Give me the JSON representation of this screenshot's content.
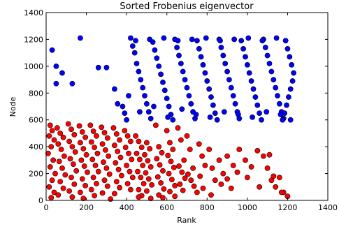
{
  "chart_data": {
    "type": "scatter",
    "title": "Sorted Frobenius eigenvector",
    "xlabel": "Rank",
    "ylabel": "Node",
    "xlim": [
      0,
      1400
    ],
    "ylim": [
      0,
      1400
    ],
    "xticks": [
      0,
      200,
      400,
      600,
      800,
      1000,
      1200,
      1400
    ],
    "yticks": [
      0,
      200,
      400,
      600,
      800,
      1000,
      1200,
      1400
    ],
    "grid": false,
    "legend": "none",
    "series": [
      {
        "color": "#ff0000",
        "approx_count": 600,
        "points": [
          [
            20,
            560
          ],
          [
            30,
            520
          ],
          [
            15,
            480
          ],
          [
            40,
            450
          ],
          [
            25,
            400
          ],
          [
            10,
            350
          ],
          [
            35,
            300
          ],
          [
            20,
            250
          ],
          [
            45,
            200
          ],
          [
            30,
            150
          ],
          [
            15,
            100
          ],
          [
            40,
            60
          ],
          [
            25,
            20
          ],
          [
            55,
            540
          ],
          [
            70,
            500
          ],
          [
            85,
            470
          ],
          [
            60,
            420
          ],
          [
            75,
            380
          ],
          [
            90,
            330
          ],
          [
            65,
            290
          ],
          [
            80,
            240
          ],
          [
            95,
            190
          ],
          [
            70,
            140
          ],
          [
            85,
            90
          ],
          [
            60,
            40
          ],
          [
            110,
            570
          ],
          [
            125,
            530
          ],
          [
            140,
            490
          ],
          [
            115,
            440
          ],
          [
            130,
            400
          ],
          [
            145,
            360
          ],
          [
            120,
            310
          ],
          [
            135,
            270
          ],
          [
            150,
            220
          ],
          [
            125,
            170
          ],
          [
            140,
            120
          ],
          [
            115,
            70
          ],
          [
            130,
            25
          ],
          [
            165,
            555
          ],
          [
            180,
            510
          ],
          [
            195,
            470
          ],
          [
            170,
            430
          ],
          [
            185,
            385
          ],
          [
            200,
            340
          ],
          [
            175,
            300
          ],
          [
            190,
            255
          ],
          [
            205,
            210
          ],
          [
            180,
            160
          ],
          [
            195,
            110
          ],
          [
            170,
            60
          ],
          [
            185,
            15
          ],
          [
            220,
            560
          ],
          [
            235,
            515
          ],
          [
            250,
            480
          ],
          [
            225,
            435
          ],
          [
            240,
            395
          ],
          [
            255,
            350
          ],
          [
            230,
            305
          ],
          [
            245,
            260
          ],
          [
            260,
            215
          ],
          [
            235,
            170
          ],
          [
            250,
            125
          ],
          [
            225,
            80
          ],
          [
            240,
            35
          ],
          [
            275,
            545
          ],
          [
            290,
            505
          ],
          [
            305,
            465
          ],
          [
            280,
            420
          ],
          [
            295,
            375
          ],
          [
            310,
            330
          ],
          [
            285,
            285
          ],
          [
            300,
            240
          ],
          [
            315,
            195
          ],
          [
            290,
            150
          ],
          [
            305,
            105
          ],
          [
            280,
            55
          ],
          [
            320,
            10
          ],
          [
            335,
            540
          ],
          [
            350,
            495
          ],
          [
            365,
            450
          ],
          [
            340,
            410
          ],
          [
            355,
            365
          ],
          [
            370,
            320
          ],
          [
            345,
            280
          ],
          [
            360,
            230
          ],
          [
            375,
            185
          ],
          [
            350,
            140
          ],
          [
            365,
            95
          ],
          [
            340,
            50
          ],
          [
            390,
            520
          ],
          [
            405,
            480
          ],
          [
            420,
            440
          ],
          [
            395,
            395
          ],
          [
            410,
            350
          ],
          [
            425,
            305
          ],
          [
            400,
            260
          ],
          [
            415,
            215
          ],
          [
            430,
            170
          ],
          [
            405,
            125
          ],
          [
            420,
            80
          ],
          [
            445,
            480
          ],
          [
            460,
            440
          ],
          [
            475,
            395
          ],
          [
            450,
            350
          ],
          [
            465,
            305
          ],
          [
            480,
            260
          ],
          [
            455,
            215
          ],
          [
            470,
            170
          ],
          [
            485,
            125
          ],
          [
            460,
            80
          ],
          [
            475,
            35
          ],
          [
            500,
            430
          ],
          [
            515,
            385
          ],
          [
            490,
            340
          ],
          [
            505,
            295
          ],
          [
            520,
            250
          ],
          [
            495,
            205
          ],
          [
            510,
            160
          ],
          [
            525,
            115
          ],
          [
            500,
            70
          ],
          [
            545,
            560
          ],
          [
            560,
            400
          ],
          [
            575,
            355
          ],
          [
            550,
            310
          ],
          [
            565,
            265
          ],
          [
            580,
            220
          ],
          [
            555,
            175
          ],
          [
            570,
            130
          ],
          [
            585,
            85
          ],
          [
            560,
            40
          ],
          [
            600,
            520
          ],
          [
            615,
            430
          ],
          [
            630,
            380
          ],
          [
            605,
            335
          ],
          [
            620,
            290
          ],
          [
            635,
            245
          ],
          [
            610,
            200
          ],
          [
            625,
            155
          ],
          [
            640,
            110
          ],
          [
            615,
            65
          ],
          [
            655,
            540
          ],
          [
            670,
            450
          ],
          [
            685,
            300
          ],
          [
            660,
            255
          ],
          [
            675,
            210
          ],
          [
            690,
            165
          ],
          [
            665,
            120
          ],
          [
            680,
            75
          ],
          [
            700,
            480
          ],
          [
            715,
            380
          ],
          [
            730,
            240
          ],
          [
            705,
            195
          ],
          [
            720,
            150
          ],
          [
            735,
            105
          ],
          [
            760,
            420
          ],
          [
            775,
            330
          ],
          [
            790,
            260
          ],
          [
            765,
            180
          ],
          [
            780,
            90
          ],
          [
            810,
            380
          ],
          [
            825,
            240
          ],
          [
            840,
            150
          ],
          [
            860,
            300
          ],
          [
            880,
            200
          ],
          [
            900,
            330
          ],
          [
            930,
            260
          ],
          [
            960,
            380
          ],
          [
            990,
            300
          ],
          [
            1020,
            250
          ],
          [
            1050,
            370
          ],
          [
            1080,
            330
          ],
          [
            1100,
            240
          ],
          [
            1120,
            150
          ],
          [
            1140,
            100
          ],
          [
            1160,
            170
          ],
          [
            1180,
            60
          ],
          [
            1200,
            30
          ],
          [
            1060,
            100
          ],
          [
            1000,
            170
          ],
          [
            950,
            210
          ],
          [
            920,
            90
          ],
          [
            870,
            120
          ],
          [
            820,
            40
          ],
          [
            750,
            60
          ],
          [
            640,
            30
          ],
          [
            580,
            20
          ],
          [
            520,
            15
          ],
          [
            460,
            25
          ],
          [
            900,
            160
          ],
          [
            1110,
            340
          ],
          [
            1130,
            180
          ],
          [
            1170,
            60
          ]
        ]
      },
      {
        "color": "#0000ff",
        "approx_count": 600,
        "points": [
          [
            30,
            1120
          ],
          [
            50,
            1000
          ],
          [
            80,
            950
          ],
          [
            50,
            870
          ],
          [
            130,
            870
          ],
          [
            170,
            1210
          ],
          [
            260,
            990
          ],
          [
            300,
            990
          ],
          [
            340,
            830
          ],
          [
            355,
            720
          ],
          [
            380,
            700
          ],
          [
            390,
            650
          ],
          [
            400,
            600
          ],
          [
            410,
            780
          ],
          [
            420,
            1210
          ],
          [
            430,
            1150
          ],
          [
            440,
            1100
          ],
          [
            450,
            1020
          ],
          [
            460,
            960
          ],
          [
            470,
            900
          ],
          [
            480,
            840
          ],
          [
            490,
            780
          ],
          [
            500,
            720
          ],
          [
            510,
            660
          ],
          [
            520,
            610
          ],
          [
            530,
            1180
          ],
          [
            540,
            1120
          ],
          [
            550,
            1060
          ],
          [
            560,
            1000
          ],
          [
            570,
            940
          ],
          [
            580,
            880
          ],
          [
            590,
            820
          ],
          [
            600,
            760
          ],
          [
            610,
            700
          ],
          [
            620,
            640
          ],
          [
            630,
            600
          ],
          [
            640,
            1200
          ],
          [
            650,
            1140
          ],
          [
            660,
            1080
          ],
          [
            670,
            1020
          ],
          [
            680,
            960
          ],
          [
            690,
            900
          ],
          [
            700,
            840
          ],
          [
            710,
            780
          ],
          [
            720,
            720
          ],
          [
            730,
            660
          ],
          [
            740,
            610
          ],
          [
            750,
            1190
          ],
          [
            760,
            1130
          ],
          [
            770,
            1070
          ],
          [
            780,
            1010
          ],
          [
            790,
            950
          ],
          [
            800,
            890
          ],
          [
            810,
            830
          ],
          [
            820,
            770
          ],
          [
            830,
            710
          ],
          [
            840,
            650
          ],
          [
            850,
            600
          ],
          [
            860,
            1200
          ],
          [
            870,
            1140
          ],
          [
            880,
            1080
          ],
          [
            890,
            1020
          ],
          [
            900,
            960
          ],
          [
            910,
            900
          ],
          [
            920,
            840
          ],
          [
            930,
            780
          ],
          [
            940,
            720
          ],
          [
            950,
            660
          ],
          [
            960,
            610
          ],
          [
            970,
            1190
          ],
          [
            980,
            1130
          ],
          [
            990,
            1070
          ],
          [
            1000,
            1010
          ],
          [
            1010,
            950
          ],
          [
            1020,
            890
          ],
          [
            1030,
            830
          ],
          [
            1040,
            770
          ],
          [
            1050,
            710
          ],
          [
            1060,
            650
          ],
          [
            1070,
            600
          ],
          [
            1080,
            1200
          ],
          [
            1090,
            1140
          ],
          [
            1100,
            1080
          ],
          [
            1110,
            1020
          ],
          [
            1120,
            960
          ],
          [
            1130,
            900
          ],
          [
            1140,
            840
          ],
          [
            1150,
            780
          ],
          [
            1160,
            720
          ],
          [
            1170,
            660
          ],
          [
            1180,
            610
          ],
          [
            1190,
            1190
          ],
          [
            1200,
            1130
          ],
          [
            1210,
            1070
          ],
          [
            1220,
            1010
          ],
          [
            1230,
            950
          ],
          [
            1225,
            890
          ],
          [
            1215,
            830
          ],
          [
            1205,
            770
          ],
          [
            1195,
            710
          ],
          [
            1185,
            650
          ],
          [
            1175,
            600
          ],
          [
            445,
            1190
          ],
          [
            515,
            1200
          ],
          [
            585,
            1210
          ],
          [
            655,
            1190
          ],
          [
            725,
            1200
          ],
          [
            795,
            1210
          ],
          [
            865,
            1190
          ],
          [
            935,
            1200
          ],
          [
            1005,
            1210
          ],
          [
            1075,
            1190
          ],
          [
            1145,
            1210
          ],
          [
            465,
            660
          ],
          [
            535,
            700
          ],
          [
            605,
            620
          ],
          [
            675,
            680
          ],
          [
            745,
            640
          ],
          [
            815,
            620
          ],
          [
            885,
            660
          ],
          [
            955,
            640
          ],
          [
            1025,
            620
          ],
          [
            1095,
            660
          ],
          [
            1165,
            640
          ],
          [
            1215,
            600
          ]
        ]
      }
    ]
  }
}
